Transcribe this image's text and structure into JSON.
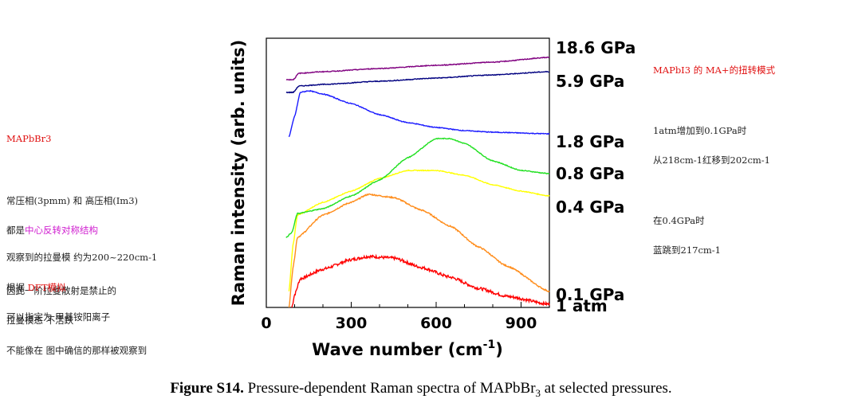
{
  "left_notes": {
    "heading": "MAPbBr3",
    "line1_part1": "常压相(3pmm) 和 高压相(Im3)",
    "line2_prefix": "都是",
    "line2_highlight": "中心反转对称结构",
    "line3": "因此一阶拉曼散射是禁止的",
    "line4": "拉曼模态 不活跃",
    "line5": "不能像在 图中确信的那样被观察到",
    "line6": "观察到的拉曼模 约为200~220cm-1",
    "line7_prefix": "根据 ",
    "line7_highlight": "DFT模拟",
    "line8": "可以指定为 甲基铵阳离子"
  },
  "right_notes": {
    "heading": "MAPbI3 的 MA+的扭转模式",
    "line1": "1atm增加到0.1GPa时",
    "line2": "从218cm-1红移到202cm-1",
    "line3": "在0.4GPa时",
    "line4": "蓝跳到217cm-1"
  },
  "caption": {
    "label": "Figure S14.",
    "text_before": " Pressure-dependent Raman spectra of MAPbBr",
    "subscript": "3",
    "text_after": " at selected pressures."
  },
  "chart_data": {
    "type": "line",
    "xlabel_main": "Wave number (cm",
    "xlabel_sup": "-1",
    "xlabel_end": ")",
    "ylabel": "Raman intensity (arb. units)",
    "xlim": [
      0,
      1000
    ],
    "xticks": [
      0,
      300,
      600,
      900
    ],
    "y_units": "arbitrary, stacked traces",
    "series": [
      {
        "name": "1 atm",
        "color": "#ff0000",
        "points": [
          [
            90,
            0
          ],
          [
            100,
            0.4
          ],
          [
            120,
            0.9
          ],
          [
            200,
            1.2
          ],
          [
            300,
            1.5
          ],
          [
            360,
            1.6
          ],
          [
            450,
            1.55
          ],
          [
            550,
            1.25
          ],
          [
            650,
            0.95
          ],
          [
            750,
            0.6
          ],
          [
            850,
            0.35
          ],
          [
            1000,
            0.1
          ]
        ]
      },
      {
        "name": "0.1 GPa",
        "color": "#ff8c1a",
        "points": [
          [
            80,
            0
          ],
          [
            95,
            1.3
          ],
          [
            110,
            2.2
          ],
          [
            200,
            2.9
          ],
          [
            300,
            3.3
          ],
          [
            360,
            3.55
          ],
          [
            450,
            3.45
          ],
          [
            550,
            3.05
          ],
          [
            650,
            2.55
          ],
          [
            750,
            1.9
          ],
          [
            850,
            1.3
          ],
          [
            1000,
            0.5
          ]
        ]
      },
      {
        "name": "0.4 GPa",
        "color": "#ffff00",
        "points": [
          [
            80,
            0.5
          ],
          [
            95,
            2.0
          ],
          [
            110,
            2.9
          ],
          [
            200,
            3.3
          ],
          [
            300,
            3.65
          ],
          [
            400,
            4.05
          ],
          [
            500,
            4.3
          ],
          [
            600,
            4.3
          ],
          [
            700,
            4.15
          ],
          [
            800,
            3.85
          ],
          [
            900,
            3.65
          ],
          [
            1000,
            3.5
          ]
        ]
      },
      {
        "name": "0.8 GPa",
        "color": "#20e020",
        "points": [
          [
            70,
            2.2
          ],
          [
            90,
            2.35
          ],
          [
            110,
            2.95
          ],
          [
            200,
            3.1
          ],
          [
            300,
            3.5
          ],
          [
            400,
            4.0
          ],
          [
            500,
            4.7
          ],
          [
            600,
            5.3
          ],
          [
            650,
            5.3
          ],
          [
            700,
            5.15
          ],
          [
            800,
            4.6
          ],
          [
            900,
            4.3
          ],
          [
            1000,
            4.2
          ]
        ]
      },
      {
        "name": "1.8 GPa",
        "color": "#1a1aff",
        "points": [
          [
            80,
            5.35
          ],
          [
            100,
            6.0
          ],
          [
            120,
            6.75
          ],
          [
            150,
            6.8
          ],
          [
            200,
            6.7
          ],
          [
            300,
            6.4
          ],
          [
            400,
            6.05
          ],
          [
            500,
            5.8
          ],
          [
            600,
            5.65
          ],
          [
            700,
            5.55
          ],
          [
            800,
            5.5
          ],
          [
            1000,
            5.45
          ]
        ]
      },
      {
        "name": "5.9 GPa",
        "color": "#000080",
        "points": [
          [
            70,
            6.75
          ],
          [
            95,
            6.75
          ],
          [
            115,
            6.95
          ],
          [
            200,
            7.0
          ],
          [
            400,
            7.1
          ],
          [
            600,
            7.2
          ],
          [
            800,
            7.3
          ],
          [
            1000,
            7.4
          ]
        ]
      },
      {
        "name": "18.6 GPa",
        "color": "#800080",
        "points": [
          [
            70,
            7.15
          ],
          [
            95,
            7.15
          ],
          [
            115,
            7.35
          ],
          [
            200,
            7.4
          ],
          [
            400,
            7.5
          ],
          [
            600,
            7.6
          ],
          [
            800,
            7.7
          ],
          [
            1000,
            7.85
          ]
        ]
      }
    ]
  }
}
